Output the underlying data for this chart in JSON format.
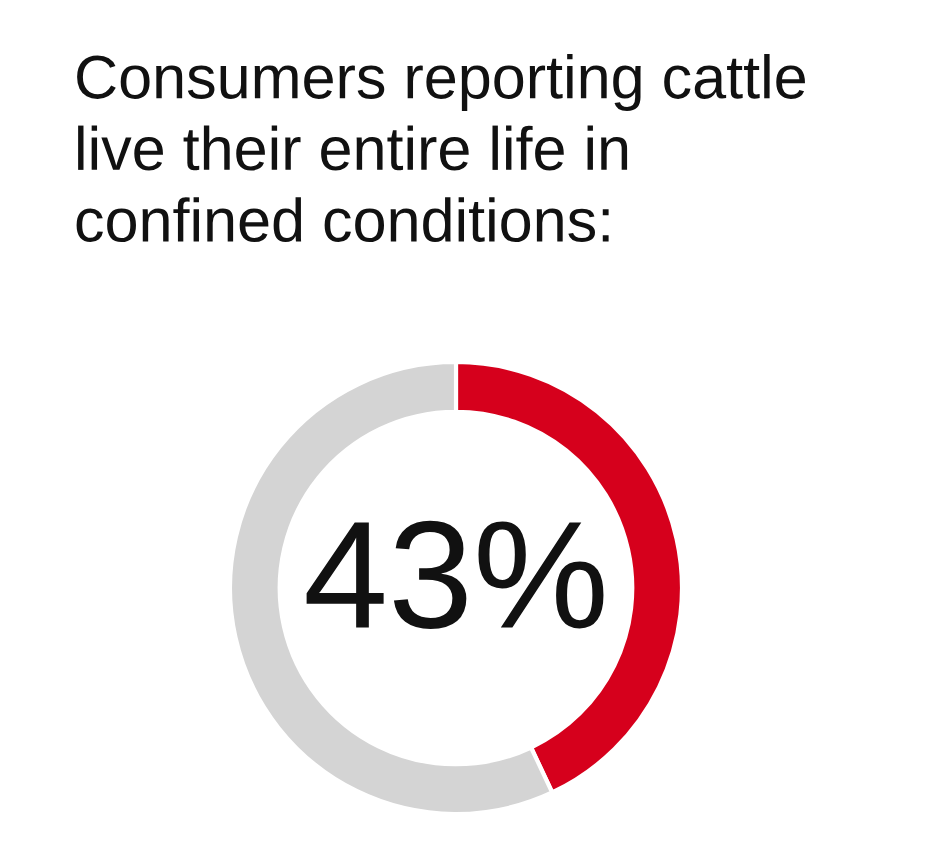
{
  "chart_data": {
    "type": "donut",
    "title": "Consumers reporting cattle\nlive their entire life in\nconfined conditions:",
    "categories": [
      null,
      null
    ],
    "values": [
      43,
      57
    ],
    "colors": [
      "#d6001c",
      "#d4d4d4"
    ],
    "value_labels": [
      "43%",
      null
    ]
  }
}
